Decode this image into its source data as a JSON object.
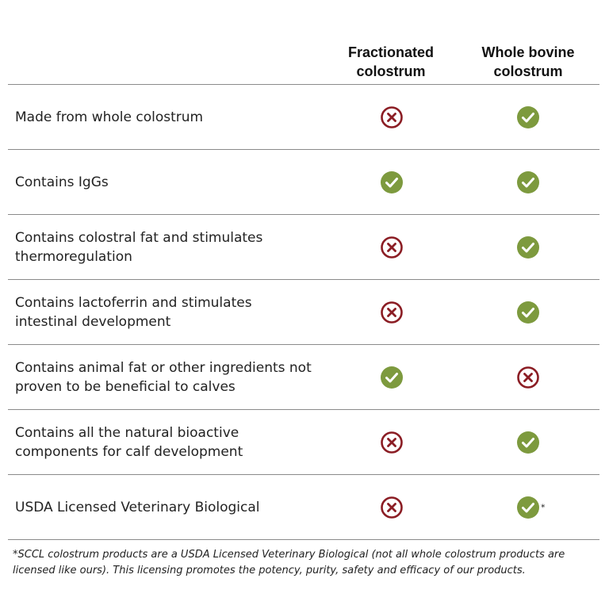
{
  "table": {
    "columns": [
      "Fractionated\ncolostrum",
      "Whole bovine\ncolostrum"
    ],
    "rows": [
      {
        "label": "Made from whole colostrum",
        "fractionated": "cross",
        "whole": "check",
        "whole_note": ""
      },
      {
        "label": "Contains IgGs",
        "fractionated": "check",
        "whole": "check",
        "whole_note": ""
      },
      {
        "label": "Contains colostral fat and stimulates\nthermoregulation",
        "fractionated": "cross",
        "whole": "check",
        "whole_note": ""
      },
      {
        "label": "Contains lactoferrin and stimulates\nintestinal development",
        "fractionated": "cross",
        "whole": "check",
        "whole_note": ""
      },
      {
        "label": "Contains animal fat or other ingredients not\nproven to be beneficial to calves",
        "fractionated": "check",
        "whole": "cross",
        "whole_note": ""
      },
      {
        "label": "Contains all the natural bioactive\ncomponents for calf development",
        "fractionated": "cross",
        "whole": "check",
        "whole_note": ""
      },
      {
        "label": "USDA Licensed Veterinary Biological",
        "fractionated": "cross",
        "whole": "check",
        "whole_note": "*"
      }
    ]
  },
  "footnote": "*SCCL colostrum products are a USDA Licensed Veterinary Biological (not all whole colostrum products are licensed like ours). This licensing promotes the potency, purity, safety and efficacy of our products.",
  "icons": {
    "check": {
      "name": "check-circle-icon",
      "color": "#7d9a3e"
    },
    "cross": {
      "name": "x-circle-icon",
      "color": "#8b1d24"
    }
  }
}
